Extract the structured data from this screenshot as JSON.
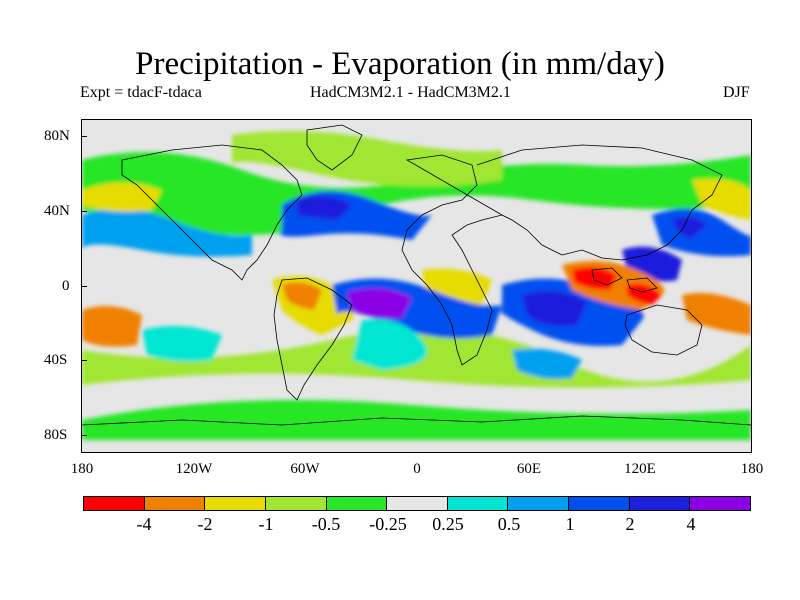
{
  "header": {
    "title": "Precipitation - Evaporation (in mm/day)",
    "left_label": "Expt = tdacF-tdaca",
    "center_label": "HadCM3M2.1 - HadCM3M2.1",
    "right_label": "DJF"
  },
  "map": {
    "projection": "equirectangular",
    "lon_range": [
      -180,
      180
    ],
    "lat_range": [
      -90,
      90
    ],
    "y_ticks": [
      "80N",
      "40N",
      "0",
      "40S",
      "80S"
    ],
    "x_ticks": [
      "180",
      "120W",
      "60W",
      "0",
      "60E",
      "120E",
      "180"
    ],
    "background_color": "#e6e6e6",
    "coastline_color": "#000000"
  },
  "colorbar": {
    "colors": [
      "#ff0000",
      "#f08000",
      "#e6dc00",
      "#a0e632",
      "#28e628",
      "#e6e6e6",
      "#00e6d2",
      "#00a0f0",
      "#0050f0",
      "#1e1edc",
      "#8c00e6"
    ],
    "labels": [
      "-4",
      "-2",
      "-1",
      "-0.5",
      "-0.25",
      "0.25",
      "0.5",
      "1",
      "2",
      "4"
    ]
  }
}
